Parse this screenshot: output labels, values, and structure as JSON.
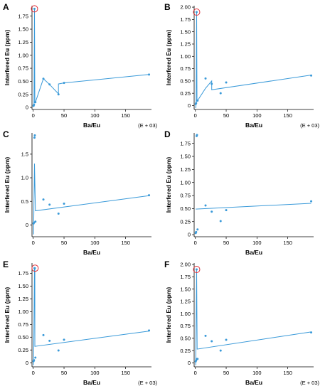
{
  "figure": {
    "colors": {
      "series": "#3a9ad9",
      "highlight": "#e0303a",
      "axes": "#000000"
    }
  },
  "chart_data": [
    {
      "panel": "A",
      "type": "line",
      "xlabel": "Ba/Eu",
      "ylabel": "Interfered Eu (ppm)",
      "x_multiplier": "(E + 03)",
      "xlim": [
        -2,
        192
      ],
      "ylim": [
        -0.04,
        1.95
      ],
      "xticks": [
        "0",
        "50",
        "100",
        "150"
      ],
      "yticks": [
        "0",
        "0.25",
        "0.50",
        "0.75",
        "1.00",
        "1.25",
        "1.50",
        "1.75"
      ],
      "points": {
        "x": [
          0.5,
          1.2,
          2.0,
          2.6,
          3.5,
          16.5,
          26.5,
          41.0,
          50.0,
          188.0
        ],
        "y": [
          0.03,
          0.05,
          1.89,
          0.1,
          0.1,
          0.55,
          0.44,
          0.25,
          0.47,
          0.63
        ]
      },
      "line": {
        "x": [
          0.5,
          1.2,
          2.0,
          2.6,
          3.5,
          16.5,
          26.5,
          41.0,
          41.0,
          50.0,
          188.0
        ],
        "y": [
          0.03,
          0.05,
          1.89,
          0.1,
          0.1,
          0.55,
          0.44,
          0.26,
          0.45,
          0.47,
          0.63
        ]
      },
      "highlight": {
        "x": 2.0,
        "y": 1.89
      }
    },
    {
      "panel": "B",
      "type": "line",
      "xlabel": "Ba/Eu",
      "ylabel": "Interfered Eu (ppm)",
      "x_multiplier": "(E + 03)",
      "xlim": [
        -2,
        192
      ],
      "ylim": [
        -0.08,
        2.03
      ],
      "xticks": [
        "0",
        "50",
        "100",
        "150"
      ],
      "yticks": [
        "0",
        "0.25",
        "0.50",
        "0.75",
        "1.00",
        "1.25",
        "1.50",
        "1.75",
        "2.00"
      ],
      "points": {
        "x": [
          0.5,
          1.2,
          2.0,
          2.6,
          3.5,
          16.5,
          26.5,
          41.0,
          50.0,
          188.0
        ],
        "y": [
          0.03,
          0.05,
          1.9,
          0.1,
          0.1,
          0.55,
          0.44,
          0.25,
          0.47,
          0.61
        ]
      },
      "line": {
        "x": [
          0.5,
          1.2,
          2.0,
          2.6,
          3.5,
          16.5,
          26.5,
          26.5,
          188.0
        ],
        "y": [
          -0.05,
          0.05,
          1.9,
          0.1,
          0.1,
          0.35,
          0.5,
          0.32,
          0.62
        ]
      },
      "highlight": {
        "x": 2.0,
        "y": 1.9
      }
    },
    {
      "panel": "C",
      "type": "line",
      "xlabel": "Ba/Eu",
      "ylabel": "Interfered Eu (ppm)",
      "x_multiplier": "",
      "xlim": [
        -2,
        192
      ],
      "ylim": [
        -0.25,
        1.95
      ],
      "xticks": [
        "0",
        "50",
        "100",
        "150"
      ],
      "yticks": [
        "0",
        "0.5",
        "1.0",
        "1.5"
      ],
      "points": {
        "x": [
          0.5,
          1.2,
          2.0,
          2.6,
          3.5,
          16.5,
          26.5,
          41.0,
          50.0,
          188.0
        ],
        "y": [
          0.03,
          0.05,
          1.85,
          1.9,
          0.07,
          0.54,
          0.43,
          0.24,
          0.45,
          0.63
        ]
      },
      "line": {
        "x": [
          0.5,
          2.0,
          3.5,
          188.0
        ],
        "y": [
          -0.2,
          1.3,
          0.3,
          0.62
        ]
      },
      "highlight": null
    },
    {
      "panel": "D",
      "type": "line",
      "xlabel": "Ba/Eu",
      "ylabel": "Interfered Eu (ppm)",
      "x_multiplier": "",
      "xlim": [
        -2,
        192
      ],
      "ylim": [
        -0.04,
        1.95
      ],
      "xticks": [
        "0",
        "50",
        "100",
        "150"
      ],
      "yticks": [
        "0",
        "0.25",
        "0.50",
        "0.75",
        "1.00",
        "1.25",
        "1.50",
        "1.75"
      ],
      "points": {
        "x": [
          0.5,
          1.2,
          2.0,
          2.6,
          3.5,
          16.5,
          26.5,
          41.0,
          50.0,
          188.0
        ],
        "y": [
          0.03,
          0.05,
          1.89,
          1.91,
          0.1,
          0.56,
          0.44,
          0.26,
          0.47,
          0.64
        ]
      },
      "line": {
        "x": [
          0.5,
          188.0
        ],
        "y": [
          0.49,
          0.6
        ]
      },
      "highlight": null
    },
    {
      "panel": "E",
      "type": "line",
      "xlabel": "Ba/Eu",
      "ylabel": "Interfered Eu (ppm)",
      "x_multiplier": "(E + 03)",
      "xlim": [
        -2,
        192
      ],
      "ylim": [
        -0.08,
        1.95
      ],
      "xticks": [
        "0",
        "50",
        "100",
        "150"
      ],
      "yticks": [
        "0",
        "0.25",
        "0.50",
        "0.75",
        "1.00",
        "1.25",
        "1.50",
        "1.75"
      ],
      "points": {
        "x": [
          0.5,
          1.2,
          2.0,
          2.6,
          3.5,
          16.5,
          26.5,
          41.0,
          50.0,
          188.0
        ],
        "y": [
          0.03,
          0.05,
          1.85,
          1.85,
          0.1,
          0.54,
          0.43,
          0.24,
          0.45,
          0.63
        ]
      },
      "line": {
        "x": [
          0.5,
          2.0,
          2.6,
          2.6,
          188.0
        ],
        "y": [
          -0.05,
          1.85,
          1.85,
          0.32,
          0.62
        ]
      },
      "highlight": {
        "x": 3.0,
        "y": 1.85
      }
    },
    {
      "panel": "F",
      "type": "line",
      "xlabel": "Ba/Eu",
      "ylabel": "Interfered Eu (ppm)",
      "x_multiplier": "(E + 03)",
      "xlim": [
        -2,
        192
      ],
      "ylim": [
        -0.08,
        2.03
      ],
      "xticks": [
        "0",
        "50",
        "100",
        "150"
      ],
      "yticks": [
        "0",
        "0.25",
        "0.50",
        "0.75",
        "1.00",
        "1.25",
        "1.50",
        "1.75",
        "2.00"
      ],
      "points": {
        "x": [
          0.5,
          1.2,
          2.0,
          2.6,
          3.5,
          16.5,
          26.5,
          41.0,
          50.0,
          188.0
        ],
        "y": [
          0.03,
          0.05,
          1.9,
          0.08,
          0.08,
          0.55,
          0.44,
          0.25,
          0.47,
          0.62
        ]
      },
      "line": {
        "x": [
          0.5,
          2.0,
          2.8,
          188.0
        ],
        "y": [
          -0.05,
          1.9,
          0.28,
          0.63
        ]
      },
      "highlight": {
        "x": 2.0,
        "y": 1.9
      }
    }
  ]
}
